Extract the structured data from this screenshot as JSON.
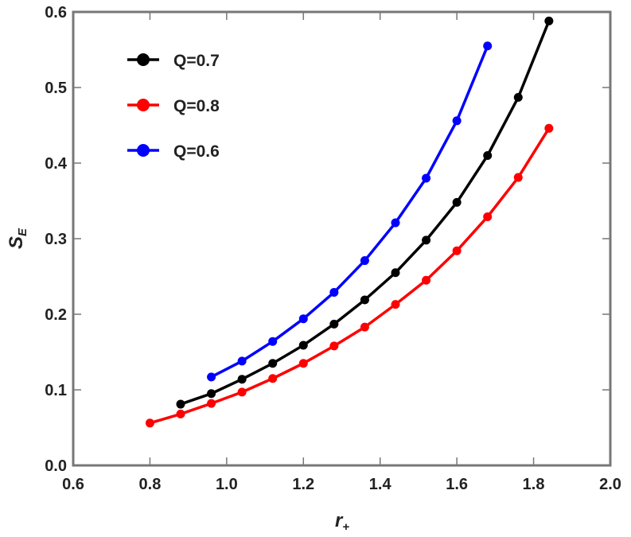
{
  "chart_data": {
    "type": "line",
    "x_label": {
      "text": "r",
      "sub": "+"
    },
    "y_label": {
      "text": "S",
      "sub": "E"
    },
    "series": [
      {
        "name": "Q=0.7",
        "color": "#000000",
        "x": [
          0.88,
          0.96,
          1.04,
          1.12,
          1.2,
          1.28,
          1.36,
          1.44,
          1.52,
          1.6,
          1.68,
          1.76,
          1.84
        ],
        "values": [
          0.081,
          0.095,
          0.114,
          0.135,
          0.159,
          0.187,
          0.219,
          0.255,
          0.298,
          0.348,
          0.41,
          0.487,
          0.588
        ]
      },
      {
        "name": "Q=0.8",
        "color": "#ff0000",
        "x": [
          0.8,
          0.88,
          0.96,
          1.04,
          1.12,
          1.2,
          1.28,
          1.36,
          1.44,
          1.52,
          1.6,
          1.68,
          1.76,
          1.84
        ],
        "values": [
          0.056,
          0.068,
          0.082,
          0.097,
          0.115,
          0.135,
          0.158,
          0.183,
          0.213,
          0.245,
          0.284,
          0.329,
          0.381,
          0.446
        ]
      },
      {
        "name": "Q=0.6",
        "color": "#0000ff",
        "x": [
          0.96,
          1.04,
          1.12,
          1.2,
          1.28,
          1.36,
          1.44,
          1.52,
          1.6,
          1.68
        ],
        "values": [
          0.117,
          0.138,
          0.164,
          0.194,
          0.229,
          0.271,
          0.321,
          0.38,
          0.456,
          0.555
        ]
      }
    ],
    "xlim": [
      0.6,
      2.0
    ],
    "xticks": [
      0.6,
      0.8,
      {
        "value": 1.0,
        "label": "1.0"
      },
      1.2,
      1.4,
      1.6,
      1.8,
      {
        "value": 2.0,
        "label": "2.0"
      }
    ],
    "ylim": [
      0.0,
      0.6
    ],
    "yticks": [
      {
        "value": 0.0,
        "label": "0.0"
      },
      0.1,
      0.2,
      0.3,
      0.4,
      0.5,
      0.6
    ],
    "legend": "upper-left"
  }
}
